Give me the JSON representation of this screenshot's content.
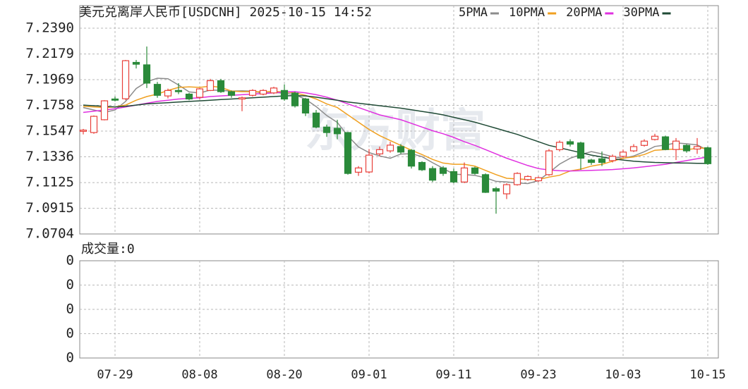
{
  "chart_data": {
    "type": "candlestick",
    "title": "美元兑离岸人民币[USDCNH] 2025-10-15 14:52",
    "watermark": "东方财富",
    "categories": [
      null,
      null,
      null,
      "07-29",
      null,
      null,
      null,
      null,
      null,
      null,
      null,
      "08-08",
      null,
      null,
      null,
      null,
      null,
      null,
      null,
      "08-20",
      null,
      null,
      null,
      null,
      null,
      null,
      null,
      "09-01",
      null,
      null,
      null,
      null,
      null,
      null,
      null,
      "09-11",
      null,
      null,
      null,
      null,
      null,
      null,
      null,
      "09-23",
      null,
      null,
      null,
      null,
      null,
      null,
      null,
      "10-03",
      null,
      null,
      null,
      null,
      null,
      null,
      null,
      "10-15"
    ],
    "open": [
      7.1545,
      7.1535,
      7.164,
      7.181,
      7.1812,
      7.211,
      7.209,
      7.193,
      7.1835,
      7.188,
      7.185,
      7.1824,
      7.188,
      7.196,
      7.187,
      7.181,
      7.184,
      7.185,
      7.186,
      7.188,
      7.1858,
      7.181,
      7.1695,
      7.158,
      7.157,
      7.1535,
      7.121,
      7.1212,
      7.136,
      7.1385,
      7.142,
      7.139,
      7.129,
      7.124,
      7.1245,
      7.1215,
      7.113,
      7.1245,
      7.119,
      7.1075,
      7.1033,
      7.1108,
      7.115,
      7.114,
      7.119,
      7.1395,
      7.146,
      7.145,
      7.131,
      7.132,
      7.1305,
      7.134,
      7.1385,
      7.143,
      7.1478,
      7.15,
      7.1396,
      7.143,
      7.14,
      7.141
    ],
    "high": [
      7.1565,
      7.1675,
      7.18,
      7.183,
      7.213,
      7.213,
      7.224,
      7.195,
      7.1895,
      7.194,
      7.186,
      7.19,
      7.1975,
      7.1975,
      7.188,
      7.183,
      7.189,
      7.189,
      7.191,
      7.193,
      7.187,
      7.182,
      7.172,
      7.16,
      7.164,
      7.154,
      7.126,
      7.14,
      7.142,
      7.146,
      7.144,
      7.14,
      7.13,
      7.126,
      7.126,
      7.124,
      7.129,
      7.1255,
      7.12,
      7.109,
      7.112,
      7.121,
      7.1185,
      7.1175,
      7.14,
      7.147,
      7.148,
      7.146,
      7.132,
      7.138,
      7.1355,
      7.1395,
      7.144,
      7.148,
      7.1525,
      7.151,
      7.149,
      7.144,
      7.149,
      7.142
    ],
    "low": [
      7.152,
      7.1525,
      7.1635,
      7.179,
      7.18,
      7.206,
      7.19,
      7.182,
      7.1815,
      7.185,
      7.18,
      7.181,
      7.1875,
      7.186,
      7.182,
      7.171,
      7.183,
      7.184,
      7.185,
      7.1795,
      7.174,
      7.167,
      7.157,
      7.15,
      7.148,
      7.119,
      7.118,
      7.12,
      7.134,
      7.137,
      7.136,
      7.124,
      7.122,
      7.113,
      7.118,
      7.112,
      7.112,
      7.119,
      7.104,
      7.087,
      7.099,
      7.11,
      7.114,
      7.113,
      7.118,
      7.138,
      7.142,
      7.123,
      7.127,
      7.126,
      7.129,
      7.133,
      7.1375,
      7.142,
      7.147,
      7.139,
      7.131,
      7.137,
      7.136,
      7.127
    ],
    "close": [
      7.1555,
      7.1668,
      7.1795,
      7.18,
      7.2124,
      7.2095,
      7.194,
      7.184,
      7.188,
      7.187,
      7.181,
      7.1893,
      7.196,
      7.187,
      7.184,
      7.182,
      7.188,
      7.188,
      7.19,
      7.181,
      7.1754,
      7.1695,
      7.158,
      7.1535,
      7.1525,
      7.12,
      7.1245,
      7.135,
      7.1395,
      7.1432,
      7.1375,
      7.126,
      7.123,
      7.1145,
      7.12,
      7.113,
      7.1245,
      7.12,
      7.1045,
      7.1055,
      7.1108,
      7.12,
      7.1175,
      7.1165,
      7.1385,
      7.1455,
      7.144,
      7.1325,
      7.129,
      7.129,
      7.134,
      7.1375,
      7.142,
      7.1465,
      7.1505,
      7.1396,
      7.1465,
      7.1385,
      7.142,
      7.128
    ],
    "up_color": "#e8403a",
    "down_color": "#2a8a3a",
    "series": [
      {
        "name": "5PMA",
        "color": "#8c8c8c",
        "values": [
          7.174,
          7.172,
          7.17,
          7.172,
          7.179,
          7.1896,
          7.1951,
          7.198,
          7.1976,
          7.1925,
          7.1868,
          7.1859,
          7.1883,
          7.1881,
          7.1875,
          7.1877,
          7.1874,
          7.1858,
          7.1864,
          7.1858,
          7.1845,
          7.1808,
          7.1748,
          7.1675,
          7.1618,
          7.1507,
          7.1417,
          7.1371,
          7.1343,
          7.1324,
          7.1359,
          7.1362,
          7.1338,
          7.1288,
          7.1242,
          7.1193,
          7.119,
          7.1184,
          7.1164,
          7.1135,
          7.1131,
          7.1122,
          7.1117,
          7.1141,
          7.1207,
          7.1276,
          7.1324,
          7.1354,
          7.1379,
          7.136,
          7.1337,
          7.1324,
          7.1343,
          7.1378,
          7.1421,
          7.1432,
          7.145,
          7.1443,
          7.1434,
          7.1389
        ]
      },
      {
        "name": "10PMA",
        "color": "#f0a020",
        "values": [
          7.175,
          7.1745,
          7.174,
          7.1745,
          7.176,
          7.18,
          7.183,
          7.185,
          7.188,
          7.1905,
          7.191,
          7.1905,
          7.1915,
          7.1905,
          7.1875,
          7.187,
          7.187,
          7.187,
          7.1872,
          7.1868,
          7.186,
          7.184,
          7.181,
          7.177,
          7.174,
          7.168,
          7.162,
          7.156,
          7.151,
          7.147,
          7.143,
          7.139,
          7.1355,
          7.1315,
          7.1285,
          7.1275,
          7.1275,
          7.126,
          7.1225,
          7.119,
          7.116,
          7.1155,
          7.115,
          7.115,
          7.117,
          7.1185,
          7.122,
          7.1235,
          7.126,
          7.1275,
          7.13,
          7.1325,
          7.1335,
          7.1355,
          7.139,
          7.1395,
          7.14,
          7.1395,
          7.1405,
          7.141
        ]
      },
      {
        "name": "20PMA",
        "color": "#e030e0",
        "values": [
          7.17,
          7.171,
          7.172,
          7.173,
          7.1745,
          7.176,
          7.1775,
          7.179,
          7.18,
          7.181,
          7.1815,
          7.182,
          7.183,
          7.1835,
          7.184,
          7.1845,
          7.185,
          7.1855,
          7.186,
          7.1868,
          7.187,
          7.186,
          7.1845,
          7.1825,
          7.18,
          7.177,
          7.174,
          7.171,
          7.168,
          7.166,
          7.164,
          7.161,
          7.158,
          7.155,
          7.1525,
          7.1495,
          7.146,
          7.143,
          7.1395,
          7.136,
          7.1325,
          7.1295,
          7.1265,
          7.124,
          7.1228,
          7.1222,
          7.122,
          7.1222,
          7.1225,
          7.1228,
          7.1232,
          7.1238,
          7.1245,
          7.1255,
          7.1265,
          7.1275,
          7.129,
          7.1305,
          7.132,
          7.1335
        ]
      },
      {
        "name": "30PMA",
        "color": "#1f4a35",
        "values": [
          7.176,
          7.1755,
          7.175,
          7.1745,
          7.175,
          7.176,
          7.177,
          7.1775,
          7.178,
          7.1785,
          7.179,
          7.1795,
          7.18,
          7.1805,
          7.181,
          7.1815,
          7.182,
          7.1825,
          7.183,
          7.1835,
          7.1838,
          7.1835,
          7.1825,
          7.1812,
          7.18,
          7.1785,
          7.1775,
          7.1765,
          7.1755,
          7.1745,
          7.1735,
          7.1722,
          7.1708,
          7.1695,
          7.168,
          7.166,
          7.164,
          7.162,
          7.1595,
          7.157,
          7.1545,
          7.152,
          7.149,
          7.146,
          7.143,
          7.141,
          7.139,
          7.137,
          7.135,
          7.1335,
          7.132,
          7.131,
          7.13,
          7.1295,
          7.129,
          7.1288,
          7.1286,
          7.1285,
          7.1283,
          7.1282
        ]
      }
    ],
    "ylim": [
      7.0704,
      7.2575
    ],
    "yticks": [
      {
        "value": 7.0704,
        "label": "7.0704"
      },
      {
        "value": 7.0915,
        "label": "7.0915"
      },
      {
        "value": 7.1125,
        "label": "7.1125"
      },
      {
        "value": 7.1336,
        "label": "7.1336"
      },
      {
        "value": 7.1547,
        "label": "7.1547"
      },
      {
        "value": 7.1758,
        "label": "7.1758"
      },
      {
        "value": 7.1969,
        "label": "7.1969"
      },
      {
        "value": 7.2179,
        "label": "7.2179"
      },
      {
        "value": 7.239,
        "label": "7.2390"
      }
    ],
    "grid": true,
    "volume_title": "成交量:0",
    "volume_yticks": [
      0,
      0,
      0,
      0,
      0
    ]
  }
}
